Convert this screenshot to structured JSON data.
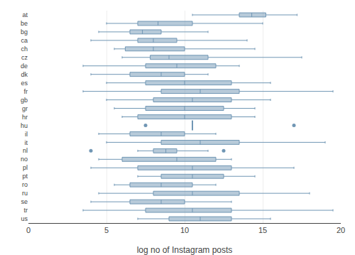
{
  "chart_data": {
    "type": "box",
    "orientation": "horizontal",
    "categories": [
      "at",
      "be",
      "bg",
      "ca",
      "ch",
      "cz",
      "de",
      "dk",
      "es",
      "fr",
      "gb",
      "gr",
      "hr",
      "hu",
      "il",
      "it",
      "nl",
      "no",
      "pl",
      "pt",
      "ro",
      "ru",
      "se",
      "tr",
      "us"
    ],
    "lowerfence": [
      10.5,
      5.0,
      4.5,
      4.0,
      5.5,
      6.0,
      3.5,
      4.0,
      5.0,
      3.5,
      5.0,
      5.5,
      6.0,
      null,
      4.5,
      5.0,
      7.0,
      4.5,
      4.0,
      7.0,
      5.5,
      4.5,
      4.0,
      3.5,
      7.0
    ],
    "q1": [
      13.5,
      7.0,
      6.5,
      7.0,
      6.2,
      7.8,
      7.5,
      6.5,
      7.5,
      8.5,
      8.0,
      7.5,
      7.0,
      null,
      6.5,
      8.5,
      8.0,
      6.0,
      7.0,
      8.5,
      6.5,
      8.0,
      6.5,
      7.5,
      9.0
    ],
    "median": [
      14.3,
      8.3,
      7.3,
      8.0,
      8.0,
      9.0,
      9.5,
      8.5,
      10.0,
      11.0,
      10.5,
      10.0,
      10.0,
      10.5,
      8.5,
      11.0,
      8.8,
      9.5,
      10.5,
      10.5,
      8.5,
      10.5,
      8.5,
      10.5,
      11.0
    ],
    "q3": [
      15.2,
      10.5,
      8.5,
      9.5,
      10.0,
      11.5,
      12.0,
      10.0,
      13.0,
      13.5,
      13.0,
      12.5,
      13.0,
      null,
      10.0,
      13.5,
      9.5,
      12.0,
      13.0,
      12.5,
      10.5,
      13.5,
      10.0,
      13.0,
      13.0
    ],
    "upperfence": [
      17.2,
      15.0,
      11.5,
      14.0,
      14.5,
      17.5,
      13.5,
      11.5,
      15.5,
      19.5,
      15.5,
      14.5,
      14.5,
      null,
      12.0,
      19.0,
      11.5,
      13.0,
      17.0,
      14.5,
      12.0,
      18.0,
      13.0,
      19.5,
      15.5
    ],
    "fliers": [
      [],
      [],
      [],
      [],
      [],
      [],
      [],
      [],
      [],
      [],
      [],
      [],
      [],
      [
        7.5,
        17.0
      ],
      [],
      [],
      [
        4.0,
        12.5
      ],
      [],
      [],
      [],
      [],
      [],
      [],
      [],
      []
    ],
    "color": "#7096b4",
    "xlabel": "log no of Instagram posts",
    "xlim": [
      0,
      20
    ],
    "xticks": [
      0,
      5,
      10,
      15,
      20
    ],
    "grid": true
  }
}
